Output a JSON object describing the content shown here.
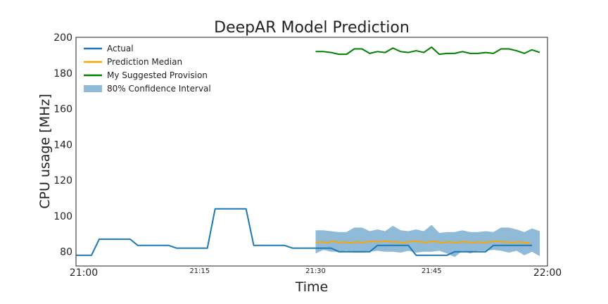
{
  "chart_data": {
    "type": "line",
    "title": "DeepAR Model Prediction",
    "xlabel": "Time",
    "ylabel": "CPU usage [MHz]",
    "xlim": [
      "20:59",
      "22:00"
    ],
    "ylim": [
      72,
      200
    ],
    "grid": false,
    "legend_position": "top-left",
    "x_ticks": [
      {
        "t": "21:00",
        "label": "21:00",
        "major": true
      },
      {
        "t": "21:15",
        "label": "21:15",
        "major": false
      },
      {
        "t": "21:30",
        "label": "21:30",
        "major": false
      },
      {
        "t": "21:45",
        "label": "21:45",
        "major": false
      },
      {
        "t": "22:00",
        "label": "22:00",
        "major": true
      }
    ],
    "y_ticks": [
      80,
      100,
      120,
      140,
      160,
      180,
      200
    ],
    "series": [
      {
        "name": "Actual",
        "color": "#1f77b4",
        "points": [
          [
            "20:59",
            78
          ],
          [
            "21:01",
            78
          ],
          [
            "21:02",
            87
          ],
          [
            "21:04",
            87
          ],
          [
            "21:06",
            87
          ],
          [
            "21:07",
            83.5
          ],
          [
            "21:09",
            83.5
          ],
          [
            "21:11",
            83.5
          ],
          [
            "21:12",
            82
          ],
          [
            "21:14",
            82
          ],
          [
            "21:16",
            82
          ],
          [
            "21:17",
            104
          ],
          [
            "21:19",
            104
          ],
          [
            "21:21",
            104
          ],
          [
            "21:22",
            83.5
          ],
          [
            "21:24",
            83.5
          ],
          [
            "21:26",
            83.5
          ],
          [
            "21:27",
            82
          ],
          [
            "21:29",
            82
          ],
          [
            "21:31",
            82
          ],
          [
            "21:32",
            82
          ],
          [
            "21:33",
            80
          ],
          [
            "21:35",
            80
          ],
          [
            "21:37",
            80
          ],
          [
            "21:38",
            83.5
          ],
          [
            "21:40",
            83.5
          ],
          [
            "21:42",
            83.5
          ],
          [
            "21:43",
            78
          ],
          [
            "21:45",
            78
          ],
          [
            "21:47",
            78
          ],
          [
            "21:48",
            80
          ],
          [
            "21:50",
            80
          ],
          [
            "21:52",
            80
          ],
          [
            "21:53",
            83.5
          ],
          [
            "21:55",
            83.5
          ],
          [
            "21:57",
            83.5
          ],
          [
            "21:58",
            83.5
          ]
        ]
      },
      {
        "name": "Prediction Median",
        "color": "#ffa500",
        "points": [
          [
            "21:30",
            85
          ],
          [
            "21:30.75",
            85.5
          ],
          [
            "21:31.5",
            85
          ],
          [
            "21:32.25",
            86
          ],
          [
            "21:33",
            85
          ],
          [
            "21:33.75",
            85.5
          ],
          [
            "21:34.5",
            85
          ],
          [
            "21:35.25",
            85.5
          ],
          [
            "21:36",
            85
          ],
          [
            "21:36.75",
            85.5
          ],
          [
            "21:37.5",
            86
          ],
          [
            "21:38.25",
            85.5
          ],
          [
            "21:39",
            86
          ],
          [
            "21:39.75",
            85.5
          ],
          [
            "21:40.5",
            85.5
          ],
          [
            "21:41.25",
            85
          ],
          [
            "21:42",
            85.5
          ],
          [
            "21:42.75",
            86
          ],
          [
            "21:43.5",
            85.5
          ],
          [
            "21:44.25",
            85
          ],
          [
            "21:45",
            86
          ],
          [
            "21:45.75",
            85.5
          ],
          [
            "21:46.5",
            85
          ],
          [
            "21:47.25",
            85.5
          ],
          [
            "21:48",
            85
          ],
          [
            "21:48.75",
            85.5
          ],
          [
            "21:49.5",
            85.5
          ],
          [
            "21:50.25",
            85
          ],
          [
            "21:51",
            85.5
          ],
          [
            "21:51.75",
            85
          ],
          [
            "21:52.5",
            85.5
          ],
          [
            "21:53.25",
            86
          ],
          [
            "21:54",
            85.5
          ],
          [
            "21:54.75",
            85.5
          ],
          [
            "21:55.5",
            85
          ],
          [
            "21:56.25",
            85.5
          ],
          [
            "21:57",
            85
          ],
          [
            "21:57.75",
            85
          ]
        ]
      },
      {
        "name": "My Suggested Provision",
        "color": "#008000",
        "points": [
          [
            "21:30",
            192
          ],
          [
            "21:31",
            192
          ],
          [
            "21:32",
            191.5
          ],
          [
            "21:33",
            190.5
          ],
          [
            "21:34",
            190.5
          ],
          [
            "21:35",
            193.5
          ],
          [
            "21:36",
            193.5
          ],
          [
            "21:37",
            191
          ],
          [
            "21:38",
            192
          ],
          [
            "21:39",
            191.5
          ],
          [
            "21:40",
            194
          ],
          [
            "21:41",
            192
          ],
          [
            "21:42",
            191.5
          ],
          [
            "21:43",
            192.5
          ],
          [
            "21:44",
            191.5
          ],
          [
            "21:45",
            194.5
          ],
          [
            "21:46",
            190.5
          ],
          [
            "21:47",
            191
          ],
          [
            "21:48",
            191
          ],
          [
            "21:49",
            192
          ],
          [
            "21:50",
            191
          ],
          [
            "21:51",
            191
          ],
          [
            "21:52",
            191.5
          ],
          [
            "21:53",
            191
          ],
          [
            "21:54",
            193.5
          ],
          [
            "21:55",
            193.5
          ],
          [
            "21:56",
            192.5
          ],
          [
            "21:57",
            191
          ],
          [
            "21:58",
            193
          ],
          [
            "21:59",
            191.5
          ]
        ]
      }
    ],
    "band": {
      "name": "80% Confidence Interval",
      "color": "#1f77b4",
      "opacity": 0.5,
      "points": [
        [
          "21:30",
          92,
          79
        ],
        [
          "21:31",
          92,
          81
        ],
        [
          "21:32",
          91.5,
          80
        ],
        [
          "21:33",
          91,
          80
        ],
        [
          "21:34",
          91,
          80.5
        ],
        [
          "21:35",
          93.5,
          79.5
        ],
        [
          "21:36",
          93.5,
          79.5
        ],
        [
          "21:37",
          91.5,
          80
        ],
        [
          "21:38",
          92.5,
          80.5
        ],
        [
          "21:39",
          91.5,
          80
        ],
        [
          "21:40",
          94.5,
          80
        ],
        [
          "21:41",
          92,
          79.5
        ],
        [
          "21:42",
          91.5,
          80.5
        ],
        [
          "21:43",
          92.5,
          79.5
        ],
        [
          "21:44",
          91.5,
          80
        ],
        [
          "21:45",
          95,
          80
        ],
        [
          "21:46",
          90.5,
          80.5
        ],
        [
          "21:47",
          91,
          79
        ],
        [
          "21:48",
          91,
          77
        ],
        [
          "21:49",
          92,
          80.5
        ],
        [
          "21:50",
          91,
          79
        ],
        [
          "21:51",
          91,
          80.5
        ],
        [
          "21:52",
          91.5,
          80.5
        ],
        [
          "21:53",
          91,
          81
        ],
        [
          "21:54",
          93.5,
          80.5
        ],
        [
          "21:55",
          93.5,
          79.5
        ],
        [
          "21:56",
          92.5,
          80.5
        ],
        [
          "21:57",
          91,
          78
        ],
        [
          "21:58",
          93,
          80
        ],
        [
          "21:59",
          91.5,
          77.5
        ]
      ]
    }
  }
}
